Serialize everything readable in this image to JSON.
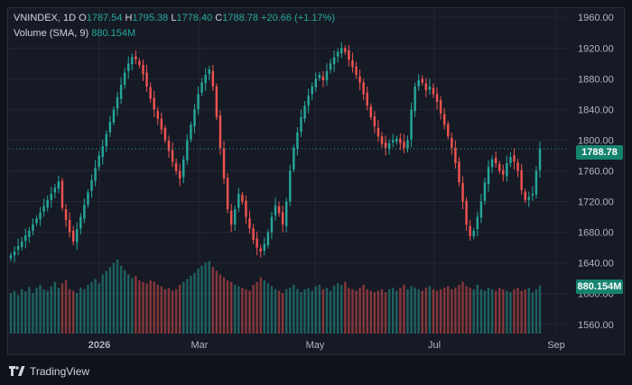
{
  "legend": {
    "symbol": "VNINDEX, 1D",
    "o_label": "O",
    "o_value": "1787.54",
    "h_label": "H",
    "h_value": "1795.38",
    "l_label": "L",
    "l_value": "1778.40",
    "c_label": "C",
    "c_value": "1788.78",
    "change": "+20.66 (+1.17%)",
    "volume_label": "Volume (SMA, 9)",
    "volume_value": "880.154M"
  },
  "price_tags": {
    "last_price": "1788.78",
    "volume": "880.154M"
  },
  "branding": {
    "logo_text": "TradingView"
  },
  "colors": {
    "up": "#26a69a",
    "down": "#ef5350",
    "background": "#161a25",
    "grid": "#232733",
    "text": "#b2b5be"
  },
  "chart_data": {
    "type": "candlestick",
    "y_axis": {
      "ticks": [
        1560,
        1600,
        1640,
        1680,
        1720,
        1760,
        1800,
        1840,
        1880,
        1920,
        1960
      ],
      "tick_labels": [
        "1560.00",
        "1600.00",
        "1640.00",
        "1680.00",
        "1720.00",
        "1760.00",
        "1800.00",
        "1840.00",
        "1880.00",
        "1920.00",
        "1960.00"
      ],
      "range": [
        1548,
        1972
      ],
      "position": "right"
    },
    "x_axis": {
      "labels": [
        "2026",
        "Mar",
        "May",
        "Jul",
        "Sep"
      ]
    },
    "grid": true,
    "last_close": 1788.78,
    "volume_sma": "880.154M",
    "series_close": [
      1650,
      1655,
      1662,
      1668,
      1676,
      1682,
      1690,
      1698,
      1706,
      1714,
      1722,
      1730,
      1738,
      1746,
      1712,
      1696,
      1680,
      1668,
      1684,
      1700,
      1716,
      1732,
      1748,
      1764,
      1780,
      1792,
      1808,
      1824,
      1840,
      1856,
      1872,
      1888,
      1900,
      1908,
      1905,
      1898,
      1886,
      1870,
      1854,
      1840,
      1828,
      1814,
      1800,
      1786,
      1772,
      1760,
      1750,
      1775,
      1800,
      1820,
      1840,
      1860,
      1875,
      1885,
      1892,
      1870,
      1830,
      1790,
      1750,
      1710,
      1690,
      1710,
      1730,
      1720,
      1700,
      1685,
      1670,
      1660,
      1655,
      1665,
      1680,
      1700,
      1715,
      1705,
      1690,
      1720,
      1760,
      1790,
      1810,
      1830,
      1845,
      1858,
      1870,
      1880,
      1885,
      1878,
      1890,
      1900,
      1908,
      1915,
      1920,
      1915,
      1905,
      1895,
      1885,
      1875,
      1860,
      1845,
      1830,
      1818,
      1805,
      1795,
      1790,
      1796,
      1800,
      1802,
      1796,
      1790,
      1800,
      1840,
      1870,
      1878,
      1875,
      1865,
      1870,
      1860,
      1850,
      1835,
      1820,
      1805,
      1790,
      1770,
      1745,
      1720,
      1690,
      1675,
      1682,
      1700,
      1720,
      1745,
      1765,
      1775,
      1770,
      1760,
      1755,
      1770,
      1778,
      1772,
      1760,
      1735,
      1722,
      1726,
      1730,
      1760,
      1789
    ],
    "volume_relative": [
      0.55,
      0.58,
      0.52,
      0.6,
      0.57,
      0.63,
      0.55,
      0.62,
      0.66,
      0.6,
      0.58,
      0.64,
      0.7,
      0.62,
      0.68,
      0.72,
      0.6,
      0.58,
      0.55,
      0.62,
      0.6,
      0.66,
      0.7,
      0.74,
      0.68,
      0.8,
      0.85,
      0.9,
      0.96,
      1.0,
      0.92,
      0.86,
      0.8,
      0.75,
      0.78,
      0.72,
      0.7,
      0.68,
      0.72,
      0.7,
      0.66,
      0.64,
      0.6,
      0.62,
      0.58,
      0.6,
      0.66,
      0.7,
      0.74,
      0.78,
      0.82,
      0.88,
      0.92,
      0.96,
      0.98,
      0.9,
      0.85,
      0.8,
      0.76,
      0.72,
      0.7,
      0.66,
      0.64,
      0.62,
      0.6,
      0.58,
      0.66,
      0.7,
      0.76,
      0.72,
      0.68,
      0.64,
      0.6,
      0.58,
      0.55,
      0.6,
      0.62,
      0.66,
      0.6,
      0.56,
      0.6,
      0.62,
      0.58,
      0.64,
      0.66,
      0.6,
      0.62,
      0.58,
      0.65,
      0.68,
      0.66,
      0.7,
      0.62,
      0.6,
      0.58,
      0.62,
      0.66,
      0.6,
      0.58,
      0.56,
      0.58,
      0.6,
      0.56,
      0.6,
      0.62,
      0.58,
      0.62,
      0.66,
      0.6,
      0.64,
      0.62,
      0.6,
      0.58,
      0.62,
      0.64,
      0.6,
      0.58,
      0.6,
      0.62,
      0.64,
      0.6,
      0.62,
      0.66,
      0.7,
      0.64,
      0.62,
      0.6,
      0.66,
      0.6,
      0.58,
      0.62,
      0.6,
      0.58,
      0.62,
      0.6,
      0.58,
      0.56,
      0.6,
      0.62,
      0.58,
      0.6,
      0.62,
      0.56,
      0.6,
      0.65
    ]
  }
}
